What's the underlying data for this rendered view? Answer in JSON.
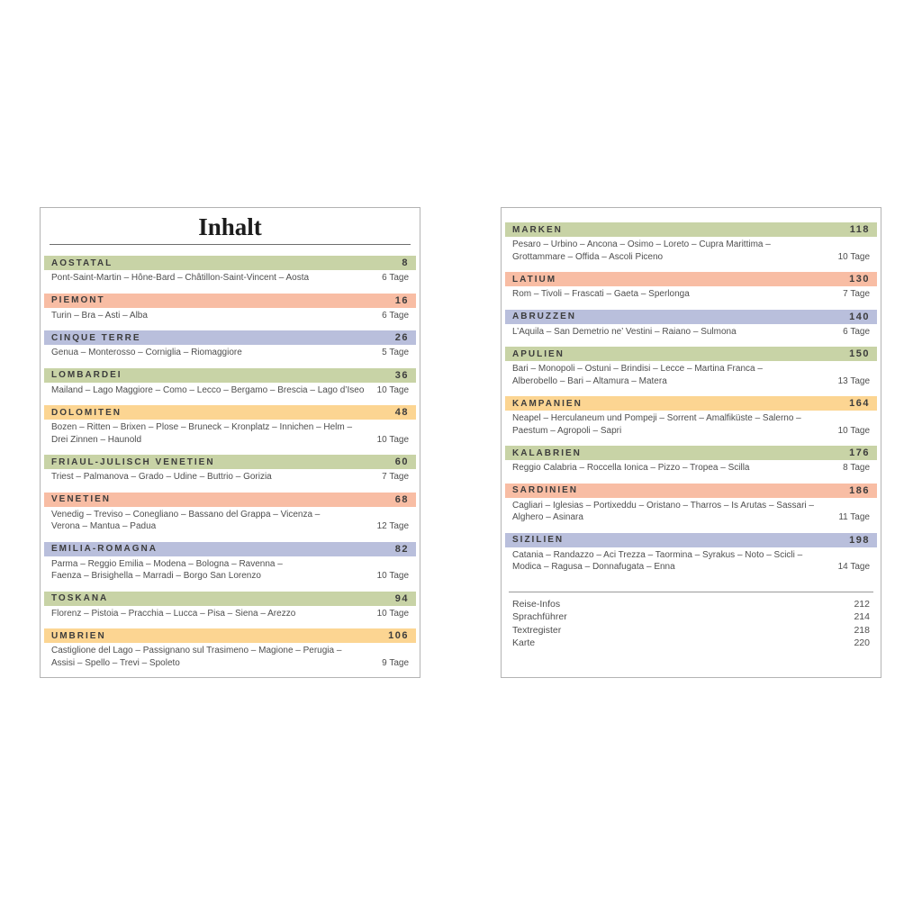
{
  "title": "Inhalt",
  "colors": {
    "green": "#c8d3a6",
    "salmon": "#f8bda4",
    "lavender": "#b9bfdc",
    "yellow": "#fcd592"
  },
  "left_sections": [
    {
      "name": "AOSTATAL",
      "page": "8",
      "color": "green",
      "route": "Pont-Saint-Martin – Hône-Bard – Châtillon-Saint-Vincent – Aosta",
      "duration": "6 Tage"
    },
    {
      "name": "PIEMONT",
      "page": "16",
      "color": "salmon",
      "route": "Turin – Bra – Asti – Alba",
      "duration": "6 Tage"
    },
    {
      "name": "CINQUE TERRE",
      "page": "26",
      "color": "lavender",
      "route": "Genua – Monterosso – Corniglia – Riomaggiore",
      "duration": "5 Tage"
    },
    {
      "name": "LOMBARDEI",
      "page": "36",
      "color": "green",
      "route": "Mailand – Lago Maggiore – Como – Lecco – Bergamo – Brescia – Lago d’Iseo",
      "duration": "10 Tage"
    },
    {
      "name": "DOLOMITEN",
      "page": "48",
      "color": "yellow",
      "route": "Bozen – Ritten – Brixen – Plose – Bruneck – Kronplatz – Innichen – Helm –\nDrei Zinnen – Haunold",
      "duration": "10 Tage"
    },
    {
      "name": "FRIAUL-JULISCH VENETIEN",
      "page": "60",
      "color": "green",
      "route": "Triest – Palmanova – Grado – Udine – Buttrio – Gorizia",
      "duration": "7 Tage"
    },
    {
      "name": "VENETIEN",
      "page": "68",
      "color": "salmon",
      "route": "Venedig – Treviso – Conegliano – Bassano del Grappa – Vicenza –\nVerona – Mantua – Padua",
      "duration": "12 Tage"
    },
    {
      "name": "EMILIA-ROMAGNA",
      "page": "82",
      "color": "lavender",
      "route": "Parma – Reggio Emilia – Modena – Bologna – Ravenna –\nFaenza – Brisighella – Marradi – Borgo San Lorenzo",
      "duration": "10 Tage"
    },
    {
      "name": "TOSKANA",
      "page": "94",
      "color": "green",
      "route": "Florenz – Pistoia – Pracchia – Lucca – Pisa – Siena – Arezzo",
      "duration": "10 Tage"
    },
    {
      "name": "UMBRIEN",
      "page": "106",
      "color": "yellow",
      "route": "Castiglione del Lago – Passignano sul Trasimeno – Magione – Perugia –\nAssisi – Spello – Trevi – Spoleto",
      "duration": "9 Tage"
    }
  ],
  "right_sections": [
    {
      "name": "MARKEN",
      "page": "118",
      "color": "green",
      "route": "Pesaro – Urbino – Ancona – Osimo – Loreto – Cupra Marittima –\nGrottammare – Offida – Ascoli Piceno",
      "duration": "10 Tage"
    },
    {
      "name": "LATIUM",
      "page": "130",
      "color": "salmon",
      "route": "Rom – Tivoli – Frascati – Gaeta – Sperlonga",
      "duration": "7 Tage"
    },
    {
      "name": "ABRUZZEN",
      "page": "140",
      "color": "lavender",
      "route": "L’Aquila – San Demetrio ne’ Vestini – Raiano – Sulmona",
      "duration": "6 Tage"
    },
    {
      "name": "APULIEN",
      "page": "150",
      "color": "green",
      "route": "Bari – Monopoli – Ostuni – Brindisi – Lecce – Martina Franca –\nAlberobello – Bari – Altamura – Matera",
      "duration": "13 Tage"
    },
    {
      "name": "KAMPANIEN",
      "page": "164",
      "color": "yellow",
      "route": "Neapel – Herculaneum und Pompeji – Sorrent – Amalfiküste – Salerno –\nPaestum – Agropoli – Sapri",
      "duration": "10 Tage"
    },
    {
      "name": "KALABRIEN",
      "page": "176",
      "color": "green",
      "route": "Reggio Calabria – Roccella Ionica – Pizzo – Tropea – Scilla",
      "duration": "8 Tage"
    },
    {
      "name": "SARDINIEN",
      "page": "186",
      "color": "salmon",
      "route": "Cagliari – Iglesias – Portixeddu – Oristano – Tharros – Is Arutas – Sassari –\nAlghero – Asinara",
      "duration": "11 Tage"
    },
    {
      "name": "SIZILIEN",
      "page": "198",
      "color": "lavender",
      "route": "Catania – Randazzo – Aci Trezza – Taormina – Syrakus – Noto – Scicli –\nModica – Ragusa – Donnafugata – Enna",
      "duration": "14 Tage"
    }
  ],
  "appendix": [
    {
      "label": "Reise-Infos",
      "page": "212"
    },
    {
      "label": "Sprachführer",
      "page": "214"
    },
    {
      "label": "Textregister",
      "page": "218"
    },
    {
      "label": "Karte",
      "page": "220"
    }
  ]
}
